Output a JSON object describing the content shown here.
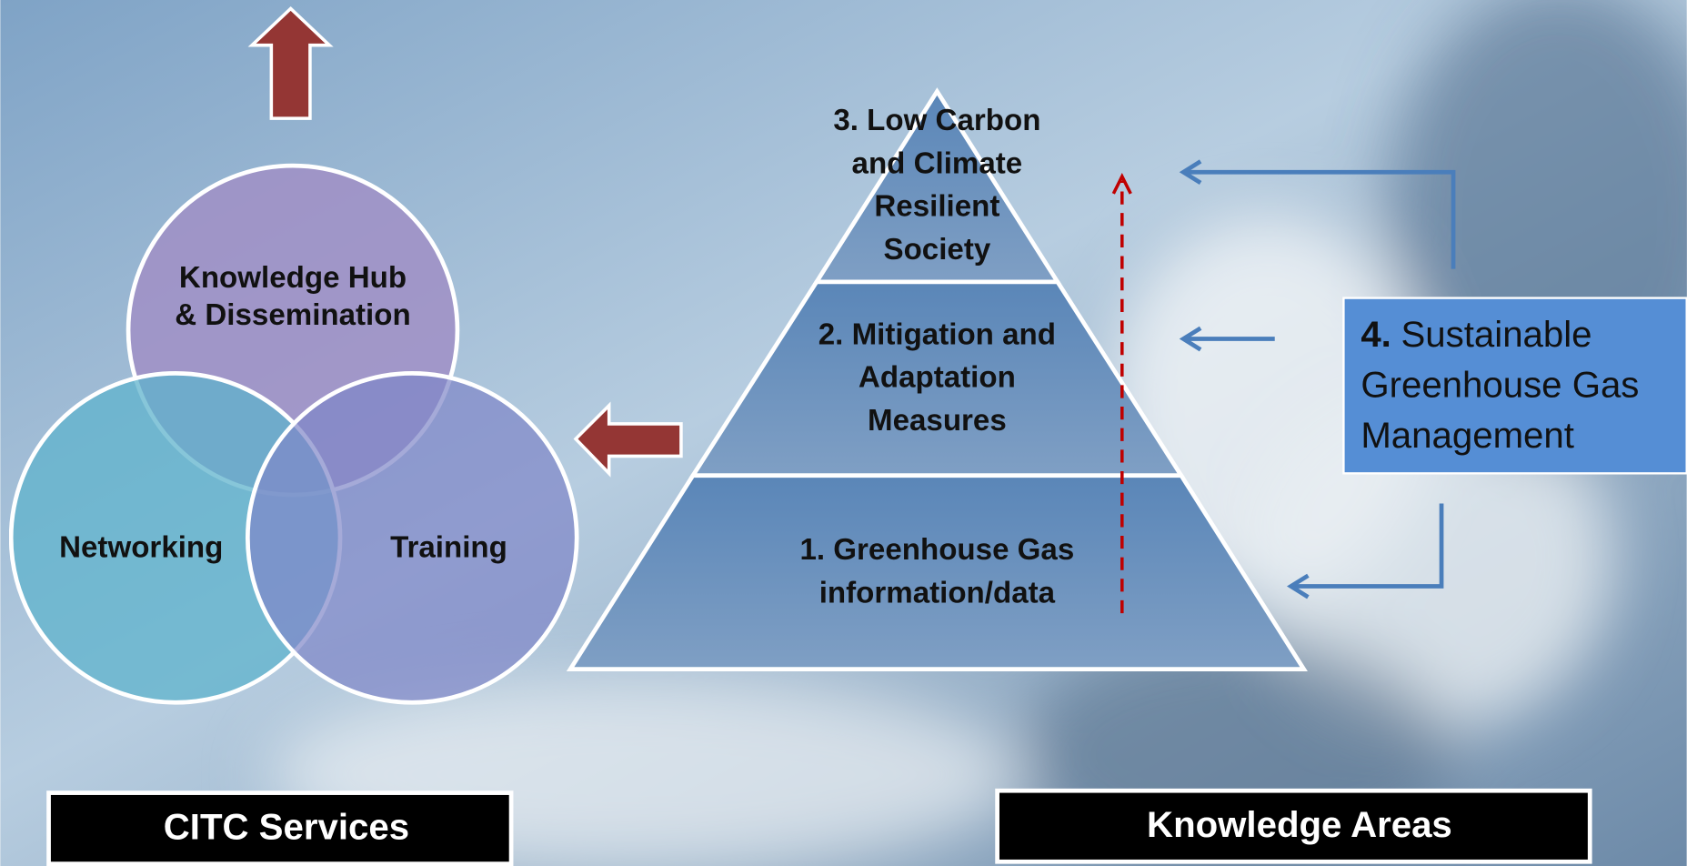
{
  "services": {
    "circles": [
      {
        "lines": [
          "Knowledge Hub",
          "& Dissemination"
        ]
      },
      {
        "lines": [
          "Networking"
        ]
      },
      {
        "lines": [
          "Training"
        ]
      }
    ],
    "footer": "CITC Services"
  },
  "pyramid": {
    "levels": [
      {
        "lines": [
          "3. Low Carbon",
          "and Climate",
          "Resilient",
          "Society"
        ]
      },
      {
        "lines": [
          "2. Mitigation and",
          "Adaptation",
          "Measures"
        ]
      },
      {
        "lines": [
          "1. Greenhouse Gas",
          "information/data"
        ]
      }
    ],
    "footer": "Knowledge Areas"
  },
  "side_box": {
    "number": "4.",
    "lines": [
      "Sustainable",
      "Greenhouse Gas",
      "Management"
    ]
  }
}
